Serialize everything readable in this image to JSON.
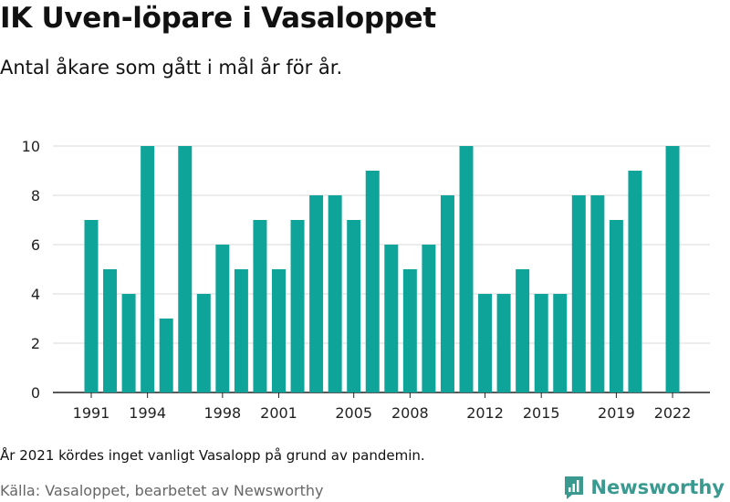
{
  "title": "IK Uven-löpare i Vasaloppet",
  "subtitle": "Antal åkare som gått i mål år för år.",
  "note": "År 2021 kördes inget vanligt Vasalopp på grund av pandemin.",
  "source": "Källa: Vasaloppet, bearbetet av Newsworthy",
  "brand": {
    "name": "Newsworthy",
    "icon": "newsworthy-logo-icon"
  },
  "colors": {
    "bar": "#0fa49a",
    "grid": "#d9d9d9",
    "brand": "#3a9a8f"
  },
  "chart_data": {
    "type": "bar",
    "categories": [
      1991,
      1992,
      1993,
      1994,
      1995,
      1996,
      1997,
      1998,
      1999,
      2000,
      2001,
      2002,
      2003,
      2004,
      2005,
      2006,
      2007,
      2008,
      2009,
      2010,
      2011,
      2012,
      2013,
      2014,
      2015,
      2016,
      2017,
      2018,
      2019,
      2020,
      2021,
      2022
    ],
    "values": [
      7,
      5,
      4,
      10,
      3,
      10,
      4,
      6,
      5,
      7,
      5,
      7,
      8,
      8,
      7,
      9,
      6,
      5,
      6,
      8,
      10,
      4,
      4,
      5,
      4,
      4,
      8,
      8,
      7,
      9,
      null,
      10
    ],
    "xticks": [
      "1991",
      "1994",
      "1998",
      "2001",
      "2005",
      "2008",
      "2012",
      "2015",
      "2019",
      "2022"
    ],
    "yticks": [
      "0",
      "2",
      "4",
      "6",
      "8",
      "10"
    ],
    "ylim": [
      0,
      10
    ],
    "grid": true,
    "legend": "none"
  }
}
